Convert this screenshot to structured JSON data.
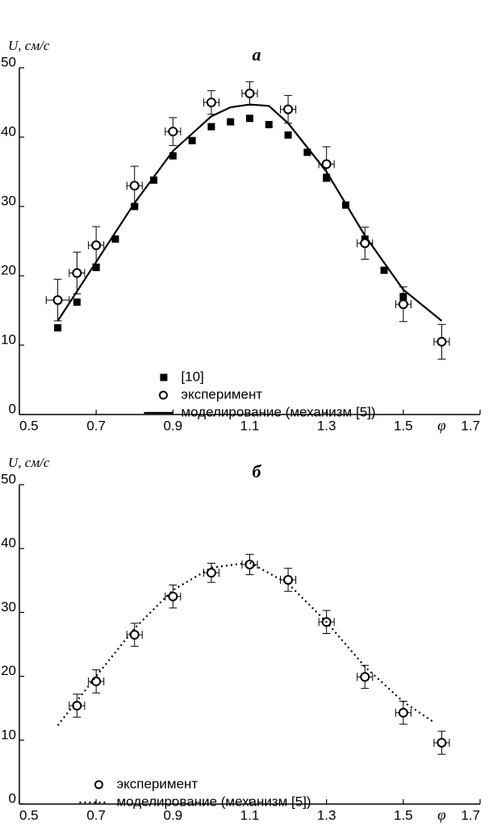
{
  "chart_data": [
    {
      "type": "scatter",
      "title": "а",
      "ylabel": "U, см/с",
      "xlabel": "φ",
      "xlim": [
        0.5,
        1.7
      ],
      "xticks": [
        0.5,
        0.7,
        0.9,
        1.1,
        1.3,
        1.5,
        1.7
      ],
      "ylim": [
        0,
        50
      ],
      "yticks": [
        0,
        10,
        20,
        30,
        40,
        50
      ],
      "legend": "lower center",
      "series": [
        {
          "name": "[10]",
          "marker": "square",
          "color": "#000000",
          "x": [
            0.6,
            0.65,
            0.7,
            0.75,
            0.8,
            0.85,
            0.9,
            0.95,
            1.0,
            1.05,
            1.1,
            1.15,
            1.2,
            1.25,
            1.3,
            1.35,
            1.4,
            1.45,
            1.5
          ],
          "values": [
            12.5,
            16.2,
            21.2,
            25.3,
            30,
            33.8,
            37.3,
            39.5,
            41.5,
            42.2,
            42.7,
            41.8,
            40.3,
            37.8,
            34.2,
            30.2,
            25.3,
            20.8,
            17
          ]
        },
        {
          "name": "эксперимент",
          "marker": "circle",
          "color": "#000000",
          "x": [
            0.6,
            0.65,
            0.7,
            0.8,
            0.9,
            1.0,
            1.1,
            1.2,
            1.3,
            1.4,
            1.5,
            1.6
          ],
          "values": [
            16.5,
            20.4,
            24.4,
            33,
            40.8,
            45,
            46.3,
            44,
            36.1,
            24.7,
            15.9,
            10.5
          ],
          "yerr": [
            3,
            3,
            2.7,
            2.8,
            2,
            1.7,
            1.7,
            2,
            2.5,
            2.3,
            2.5,
            2.5
          ],
          "xerr": [
            0.03,
            0.02,
            0.02,
            0.02,
            0.02,
            0.02,
            0.02,
            0.02,
            0.02,
            0.02,
            0.02,
            0.02
          ]
        },
        {
          "name": "моделирование (механизм  [5])",
          "marker": "line",
          "linestyle": "solid",
          "color": "#000000",
          "x": [
            0.6,
            0.7,
            0.8,
            0.9,
            1.0,
            1.05,
            1.1,
            1.15,
            1.2,
            1.3,
            1.4,
            1.5,
            1.6
          ],
          "values": [
            13.5,
            22,
            30.5,
            38,
            43,
            44.3,
            44.7,
            44.5,
            42,
            35,
            25.8,
            18,
            13.5
          ]
        }
      ]
    },
    {
      "type": "scatter",
      "title": "б",
      "ylabel": "U, см/с",
      "xlabel": "φ",
      "xlim": [
        0.5,
        1.7
      ],
      "xticks": [
        0.5,
        0.7,
        0.9,
        1.1,
        1.3,
        1.5,
        1.7
      ],
      "ylim": [
        0,
        50
      ],
      "yticks": [
        0,
        10,
        20,
        30,
        40,
        50
      ],
      "legend": "lower left",
      "series": [
        {
          "name": "эксперимент",
          "marker": "circle",
          "color": "#000000",
          "x": [
            0.65,
            0.7,
            0.8,
            0.9,
            1.0,
            1.1,
            1.2,
            1.3,
            1.4,
            1.5,
            1.6
          ],
          "values": [
            15.4,
            19.2,
            26.5,
            32.5,
            36.2,
            37.5,
            35.1,
            28.5,
            19.9,
            14.3,
            9.6
          ],
          "yerr": [
            1.8,
            1.8,
            1.8,
            1.8,
            1.5,
            1.6,
            1.8,
            1.8,
            1.8,
            1.8,
            1.8
          ],
          "xerr": [
            0.02,
            0.02,
            0.02,
            0.02,
            0.02,
            0.02,
            0.02,
            0.02,
            0.02,
            0.02,
            0.02
          ]
        },
        {
          "name": "моделирование (механизм  [5])",
          "marker": "line",
          "linestyle": "dotted",
          "color": "#000000",
          "x": [
            0.6,
            0.7,
            0.8,
            0.9,
            1.0,
            1.1,
            1.2,
            1.3,
            1.4,
            1.5,
            1.58
          ],
          "values": [
            12.3,
            20,
            27.5,
            33.5,
            37,
            37.8,
            34.5,
            28.5,
            21.5,
            16,
            12.8
          ]
        }
      ]
    }
  ]
}
